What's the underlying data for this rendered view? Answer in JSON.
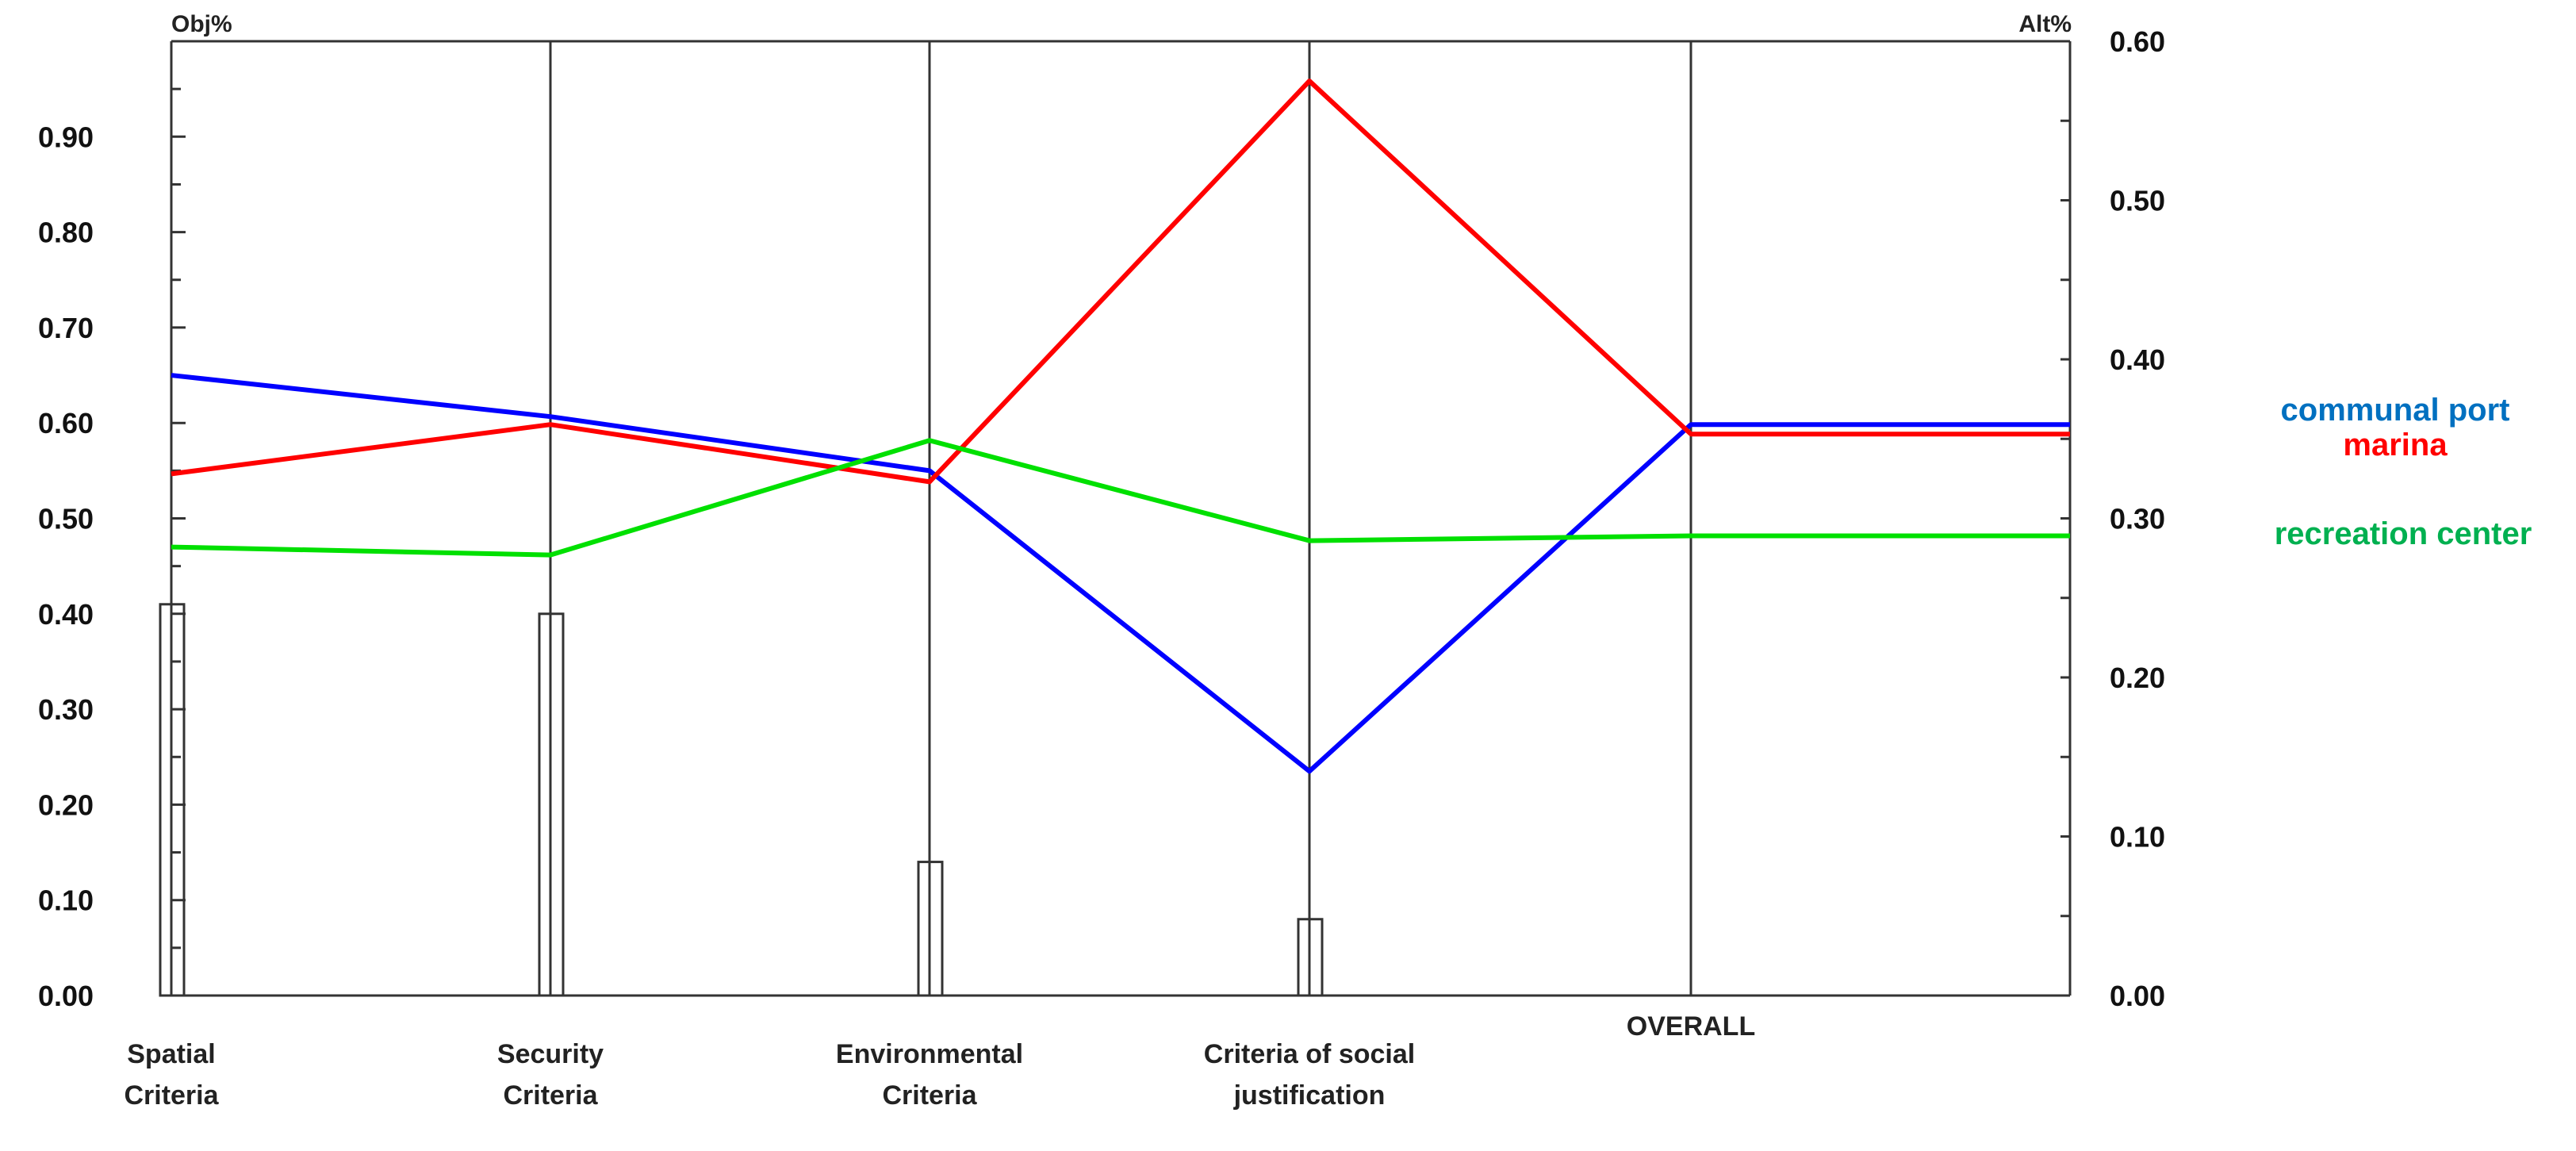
{
  "chart_data": {
    "type": "line",
    "left_axis": {
      "label": "Obj%",
      "ylim": [
        0,
        1.0
      ],
      "tick_labels": [
        "0.00",
        "0.10",
        "0.20",
        "0.30",
        "0.40",
        "0.50",
        "0.60",
        "0.70",
        "0.80",
        "0.90"
      ],
      "tick_values": [
        0,
        0.1,
        0.2,
        0.3,
        0.4,
        0.5,
        0.6,
        0.7,
        0.8,
        0.9
      ]
    },
    "right_axis": {
      "label": "Alt%",
      "ylim": [
        0,
        0.6
      ],
      "tick_labels": [
        "0.00",
        "0.10",
        "0.20",
        "0.30",
        "0.40",
        "0.50",
        "0.60"
      ],
      "tick_values": [
        0,
        0.1,
        0.2,
        0.3,
        0.4,
        0.5,
        0.6
      ]
    },
    "categories": [
      [
        "Spatial",
        "Criteria"
      ],
      [
        "Security",
        "Criteria"
      ],
      [
        "Environmental",
        "Criteria"
      ],
      [
        "Criteria of social",
        "justification"
      ]
    ],
    "overall_label": "OVERALL",
    "objective_weights": [
      0.41,
      0.4,
      0.14,
      0.08
    ],
    "series": [
      {
        "name": "communal port",
        "color": "#0000ff",
        "values": [
          0.39,
          0.364,
          0.33,
          0.141
        ],
        "overall": 0.359,
        "legend_color": "#0070c0"
      },
      {
        "name": "marina",
        "color": "#ff0000",
        "values": [
          0.328,
          0.359,
          0.323,
          0.575
        ],
        "overall": 0.353,
        "legend_color": "#ff0000"
      },
      {
        "name": "recreation center",
        "color": "#00e000",
        "values": [
          0.282,
          0.277,
          0.349,
          0.286
        ],
        "overall": 0.289,
        "legend_color": "#00b050"
      }
    ],
    "grid": false,
    "legend_position": "right"
  }
}
